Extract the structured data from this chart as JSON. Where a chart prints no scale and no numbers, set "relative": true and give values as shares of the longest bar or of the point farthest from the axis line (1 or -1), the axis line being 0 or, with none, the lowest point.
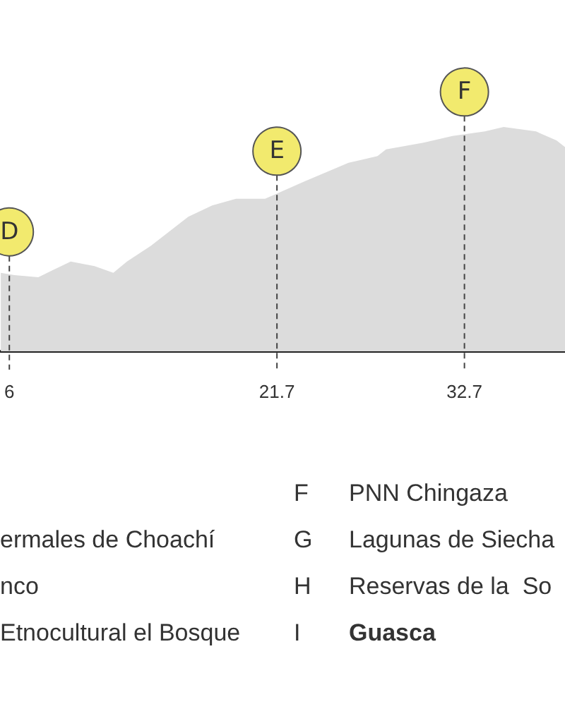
{
  "chart_data": {
    "type": "area",
    "relative": true,
    "marker": "none",
    "x": [
      5.5,
      6.3,
      7.7,
      8.5,
      9.6,
      11.0,
      12.1,
      12.9,
      14.3,
      16.5,
      17.9,
      19.3,
      21.0,
      21.6,
      23.4,
      25.9,
      27.6,
      28.1,
      30.3,
      32.0,
      33.9,
      35.0,
      36.9,
      38.1,
      38.6
    ],
    "series": [
      {
        "color": "#dcdcdc",
        "values": [
          0.35,
          0.34,
          0.33,
          0.36,
          0.4,
          0.38,
          0.35,
          0.4,
          0.47,
          0.6,
          0.65,
          0.68,
          0.68,
          0.7,
          0.76,
          0.84,
          0.87,
          0.9,
          0.93,
          0.96,
          0.98,
          1.0,
          0.98,
          0.94,
          0.91
        ]
      }
    ],
    "xlim": [
      5.5,
      38.6
    ],
    "xticks": [
      6,
      21.7,
      32.7
    ],
    "ref_lines": [
      {
        "axis": "x",
        "value": 6,
        "label": "D",
        "color": "#444444",
        "line_style": "dashed"
      },
      {
        "axis": "x",
        "value": 21.7,
        "label": "E",
        "color": "#444444",
        "line_style": "dashed"
      },
      {
        "axis": "x",
        "value": 32.7,
        "label": "F",
        "color": "#444444",
        "line_style": "dashed"
      }
    ],
    "grid": false,
    "annotations": [
      "F",
      "PNN Chingaza",
      "ermales de Choachí",
      "G",
      "Lagunas de Siecha",
      "nco",
      "H",
      "Reservas de la  So",
      "Etnocultural el Bosque",
      "I",
      "Guasca"
    ]
  }
}
